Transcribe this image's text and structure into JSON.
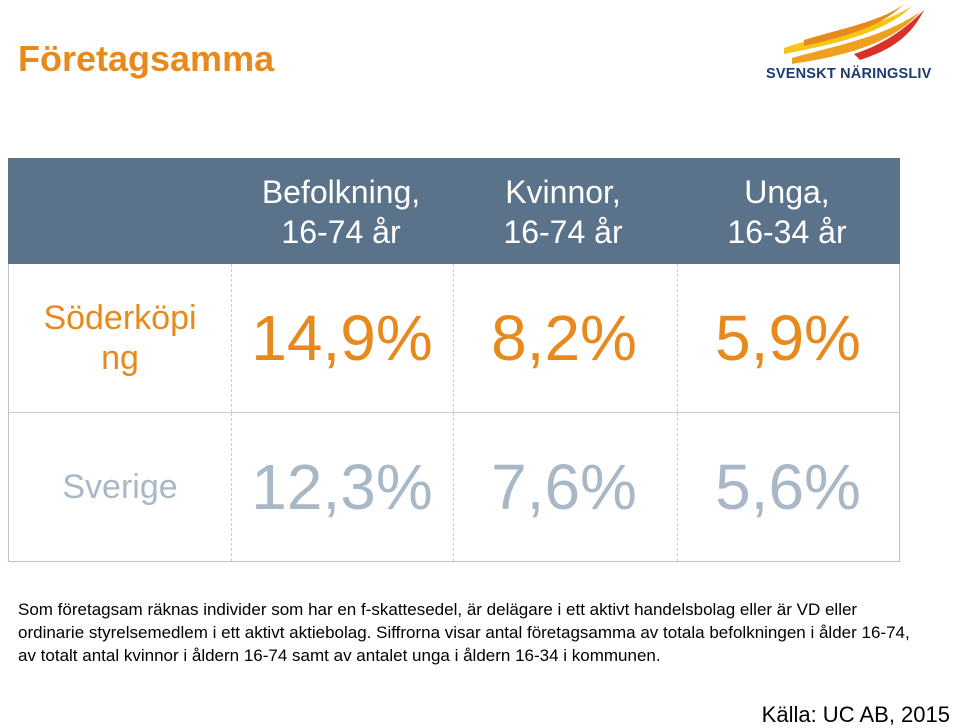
{
  "title": "Företagsamma",
  "logo": {
    "text": "SVENSKT NÄRINGSLIV",
    "icon": "wing-logo-icon",
    "colors": [
      "#f5c518",
      "#e8891c",
      "#d9302a"
    ]
  },
  "colors": {
    "accent": "#e8891c",
    "header_bg": "#5a738b",
    "muted": "#a9b8c6"
  },
  "chart_data": {
    "type": "table",
    "columns": [
      {
        "line1": "Befolkning,",
        "line2": "16-74 år"
      },
      {
        "line1": "Kvinnor,",
        "line2": "16-74 år"
      },
      {
        "line1": "Unga,",
        "line2": "16-34 år"
      }
    ],
    "rows": [
      {
        "label_line1": "Söderköpi",
        "label_line2": "ng",
        "values": [
          "14,9%",
          "8,2%",
          "5,9%"
        ],
        "numeric": [
          14.9,
          8.2,
          5.9
        ]
      },
      {
        "label": "Sverige",
        "values": [
          "12,3%",
          "7,6%",
          "5,6%"
        ],
        "numeric": [
          12.3,
          7.6,
          5.6
        ]
      }
    ]
  },
  "note": "Som företagsam räknas individer som har en f-skattesedel, är delägare i ett aktivt handelsbolag eller är VD eller ordinarie styrelsemedlem i ett aktivt aktiebolag. Siffrorna visar antal företagsamma av totala befolkningen i ålder 16-74, av totalt antal kvinnor i åldern 16-74 samt av antalet unga i åldern 16-34 i kommunen.",
  "source": "Källa: UC AB, 2015"
}
